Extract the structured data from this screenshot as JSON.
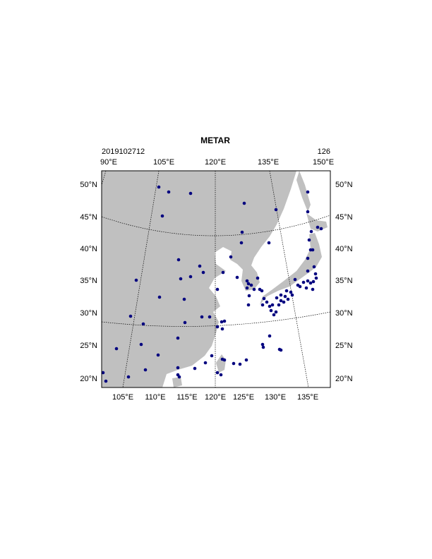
{
  "title": "METAR",
  "time": "2019102712",
  "count": "126",
  "top_labels": [
    "90°E",
    "105°E",
    "120°E",
    "135°E",
    "150°E"
  ],
  "lat_labels": [
    "50°N",
    "45°N",
    "40°N",
    "35°N",
    "30°N",
    "25°N",
    "20°N"
  ],
  "bottom_labels": [
    "105°E",
    "110°E",
    "115°E",
    "120°E",
    "125°E",
    "130°E",
    "135°E"
  ]
}
